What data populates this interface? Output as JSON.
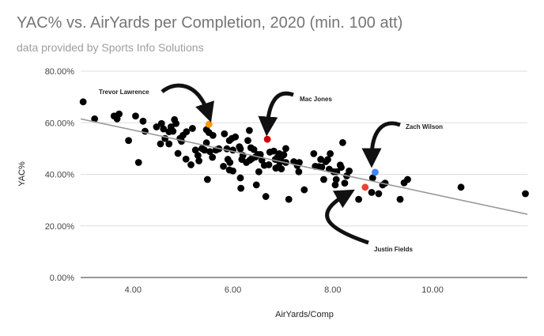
{
  "chart_data": {
    "type": "scatter",
    "title": "YAC% vs. AirYards per Completion, 2020 (min. 100 att)",
    "subtitle": "data provided by Sports Info Solutions",
    "xlabel": "AirYards/Comp",
    "ylabel": "YAC%",
    "xlim": [
      2.95,
      11.9
    ],
    "ylim": [
      0,
      0.8
    ],
    "x_ticks": [
      {
        "value": 4,
        "label": "4.00"
      },
      {
        "value": 6,
        "label": "6.00"
      },
      {
        "value": 8,
        "label": "8.00"
      },
      {
        "value": 10,
        "label": "10.00"
      }
    ],
    "y_ticks": [
      {
        "value": 0,
        "label": "0.00%"
      },
      {
        "value": 0.2,
        "label": "20.00%"
      },
      {
        "value": 0.4,
        "label": "40.00%"
      },
      {
        "value": 0.6,
        "label": "60.00%"
      },
      {
        "value": 0.8,
        "label": "80.00%"
      }
    ],
    "grid": "horizontal",
    "trendline": {
      "type": "linear",
      "from": [
        2.95,
        0.615
      ],
      "to": [
        11.9,
        0.245
      ],
      "color": "#999999"
    },
    "highlighted": [
      {
        "label": "Trevor Lawrence",
        "x": 5.52,
        "y": 0.594,
        "color": "#ff9900"
      },
      {
        "label": "Mac Jones",
        "x": 6.69,
        "y": 0.536,
        "color": "#cc0000"
      },
      {
        "label": "Zach Wilson",
        "x": 8.85,
        "y": 0.408,
        "color": "#4285f4"
      },
      {
        "label": "Justin Fields",
        "x": 8.65,
        "y": 0.35,
        "color": "#ea4335"
      }
    ],
    "points": [
      [
        3.0,
        0.681
      ],
      [
        3.23,
        0.615
      ],
      [
        3.62,
        0.626
      ],
      [
        3.68,
        0.615
      ],
      [
        3.72,
        0.634
      ],
      [
        3.91,
        0.531
      ],
      [
        4.05,
        0.626
      ],
      [
        4.11,
        0.446
      ],
      [
        4.2,
        0.606
      ],
      [
        4.24,
        0.567
      ],
      [
        4.47,
        0.584
      ],
      [
        4.55,
        0.518
      ],
      [
        4.57,
        0.597
      ],
      [
        4.61,
        0.576
      ],
      [
        4.64,
        0.539
      ],
      [
        4.72,
        0.565
      ],
      [
        4.76,
        0.584
      ],
      [
        4.8,
        0.567
      ],
      [
        4.83,
        0.612
      ],
      [
        4.86,
        0.597
      ],
      [
        4.72,
        0.518
      ],
      [
        4.94,
        0.539
      ],
      [
        4.97,
        0.528
      ],
      [
        5.0,
        0.551
      ],
      [
        5.07,
        0.565
      ],
      [
        4.9,
        0.481
      ],
      [
        5.06,
        0.459
      ],
      [
        5.19,
        0.578
      ],
      [
        5.25,
        0.494
      ],
      [
        5.3,
        0.473
      ],
      [
        5.16,
        0.437
      ],
      [
        5.32,
        0.452
      ],
      [
        5.38,
        0.5
      ],
      [
        5.43,
        0.494
      ],
      [
        5.47,
        0.573
      ],
      [
        5.47,
        0.522
      ],
      [
        5.52,
        0.562
      ],
      [
        5.54,
        0.488
      ],
      [
        5.59,
        0.466
      ],
      [
        5.49,
        0.38
      ],
      [
        5.6,
        0.551
      ],
      [
        5.66,
        0.494
      ],
      [
        5.72,
        0.499
      ],
      [
        5.81,
        0.431
      ],
      [
        5.83,
        0.557
      ],
      [
        5.88,
        0.499
      ],
      [
        5.9,
        0.458
      ],
      [
        5.94,
        0.446
      ],
      [
        5.98,
        0.539
      ],
      [
        6.0,
        0.494
      ],
      [
        6.0,
        0.413
      ],
      [
        6.05,
        0.545
      ],
      [
        5.93,
        0.531
      ],
      [
        5.93,
        0.417
      ],
      [
        6.13,
        0.507
      ],
      [
        6.15,
        0.499
      ],
      [
        6.18,
        0.458
      ],
      [
        6.2,
        0.473
      ],
      [
        6.15,
        0.386
      ],
      [
        6.16,
        0.346
      ],
      [
        6.27,
        0.446
      ],
      [
        6.3,
        0.531
      ],
      [
        6.36,
        0.503
      ],
      [
        6.33,
        0.57
      ],
      [
        6.34,
        0.455
      ],
      [
        6.38,
        0.461
      ],
      [
        6.42,
        0.496
      ],
      [
        6.45,
        0.467
      ],
      [
        6.47,
        0.359
      ],
      [
        6.55,
        0.477
      ],
      [
        6.5,
        0.477
      ],
      [
        6.52,
        0.41
      ],
      [
        6.58,
        0.455
      ],
      [
        6.63,
        0.435
      ],
      [
        6.66,
        0.314
      ],
      [
        6.72,
        0.437
      ],
      [
        6.74,
        0.486
      ],
      [
        6.82,
        0.49
      ],
      [
        6.85,
        0.458
      ],
      [
        6.86,
        0.424
      ],
      [
        6.9,
        0.467
      ],
      [
        6.9,
        0.427
      ],
      [
        6.93,
        0.48
      ],
      [
        6.94,
        0.446
      ],
      [
        6.96,
        0.462
      ],
      [
        6.97,
        0.421
      ],
      [
        7.02,
        0.476
      ],
      [
        7.06,
        0.446
      ],
      [
        7.06,
        0.5
      ],
      [
        7.12,
        0.303
      ],
      [
        7.22,
        0.449
      ],
      [
        7.29,
        0.434
      ],
      [
        7.32,
        0.41
      ],
      [
        7.33,
        0.446
      ],
      [
        7.43,
        0.34
      ],
      [
        7.62,
        0.48
      ],
      [
        7.65,
        0.431
      ],
      [
        7.72,
        0.43
      ],
      [
        7.76,
        0.458
      ],
      [
        7.78,
        0.428
      ],
      [
        7.82,
        0.38
      ],
      [
        7.86,
        0.449
      ],
      [
        7.9,
        0.457
      ],
      [
        7.93,
        0.42
      ],
      [
        7.95,
        0.48
      ],
      [
        8.02,
        0.41
      ],
      [
        8.05,
        0.359
      ],
      [
        8.07,
        0.38
      ],
      [
        8.08,
        0.41
      ],
      [
        8.15,
        0.436
      ],
      [
        8.17,
        0.427
      ],
      [
        8.2,
        0.523
      ],
      [
        8.24,
        0.366
      ],
      [
        8.28,
        0.394
      ],
      [
        8.33,
        0.413
      ],
      [
        8.52,
        0.303
      ],
      [
        8.78,
        0.33
      ],
      [
        8.8,
        0.386
      ],
      [
        8.92,
        0.325
      ],
      [
        9.0,
        0.359
      ],
      [
        9.05,
        0.366
      ],
      [
        9.35,
        0.303
      ],
      [
        9.43,
        0.367
      ],
      [
        9.5,
        0.38
      ],
      [
        10.57,
        0.35
      ],
      [
        11.86,
        0.325
      ]
    ]
  }
}
